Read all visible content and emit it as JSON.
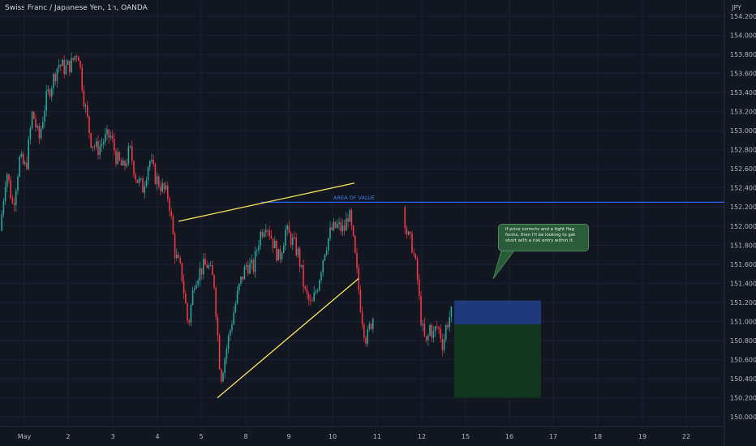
{
  "header": {
    "title": "Swiss Franc / Japanese Yen, 1h, OANDA",
    "currency": "JPY"
  },
  "annotations": {
    "area_of_value": "AREA OF VALUE",
    "callout": "If price corrects and a tight flag forms, then I'll be looking to get short with a risk entry within it."
  },
  "colors": {
    "background": "#131722",
    "up": "#26a69a",
    "down": "#f23645",
    "trendline": "#f7e35b",
    "level": "#2962ff",
    "risk_zone": "#1f3a78",
    "reward_zone": "#13351f",
    "callout_bg": "#2a5c3a"
  },
  "chart_data": {
    "type": "candlestick",
    "title": "Swiss Franc / Japanese Yen, 1h, OANDA",
    "y_unit": "JPY",
    "ylim": [
      149.9,
      154.3
    ],
    "x_ticks": [
      "May",
      "2",
      "3",
      "4",
      "5",
      "8",
      "9",
      "10",
      "11",
      "12",
      "15",
      "16",
      "17",
      "18",
      "19",
      "22"
    ],
    "y_ticks": [
      150.0,
      150.2,
      150.4,
      150.6,
      150.8,
      151.0,
      151.2,
      151.4,
      151.6,
      151.8,
      152.0,
      152.2,
      152.4,
      152.6,
      152.8,
      153.0,
      153.2,
      153.4,
      153.6,
      153.8,
      154.0,
      154.2
    ],
    "price_path": [
      [
        0,
        151.95
      ],
      [
        8,
        152.6
      ],
      [
        16,
        152.2
      ],
      [
        24,
        152.7
      ],
      [
        32,
        152.6
      ],
      [
        40,
        153.2
      ],
      [
        48,
        152.9
      ],
      [
        56,
        153.3
      ],
      [
        64,
        153.5
      ],
      [
        72,
        153.7
      ],
      [
        80,
        153.65
      ],
      [
        88,
        153.7
      ],
      [
        96,
        153.85
      ],
      [
        104,
        153.3
      ],
      [
        112,
        152.9
      ],
      [
        120,
        152.8
      ],
      [
        128,
        152.9
      ],
      [
        136,
        152.95
      ],
      [
        144,
        152.7
      ],
      [
        152,
        152.6
      ],
      [
        160,
        152.8
      ],
      [
        168,
        152.5
      ],
      [
        176,
        152.4
      ],
      [
        184,
        152.7
      ],
      [
        192,
        152.5
      ],
      [
        200,
        152.4
      ],
      [
        208,
        152.3
      ],
      [
        216,
        151.7
      ],
      [
        224,
        151.5
      ],
      [
        232,
        150.95
      ],
      [
        240,
        151.45
      ],
      [
        248,
        151.55
      ],
      [
        256,
        151.6
      ],
      [
        264,
        151.4
      ],
      [
        272,
        150.4
      ],
      [
        280,
        150.75
      ],
      [
        288,
        151.1
      ],
      [
        296,
        151.4
      ],
      [
        304,
        151.6
      ],
      [
        312,
        151.55
      ],
      [
        320,
        151.9
      ],
      [
        328,
        152.05
      ],
      [
        336,
        151.85
      ],
      [
        344,
        151.65
      ],
      [
        352,
        151.95
      ],
      [
        360,
        151.85
      ],
      [
        368,
        151.7
      ],
      [
        376,
        151.3
      ],
      [
        384,
        151.15
      ],
      [
        392,
        151.4
      ],
      [
        400,
        151.75
      ],
      [
        408,
        151.95
      ],
      [
        416,
        152.0
      ],
      [
        424,
        151.95
      ],
      [
        430,
        152.15
      ],
      [
        436,
        151.8
      ],
      [
        440,
        151.5
      ],
      [
        444,
        151.2
      ],
      [
        448,
        150.95
      ],
      [
        452,
        150.8
      ],
      [
        456,
        150.95
      ],
      [
        460,
        151.05
      ],
      [
        497,
        152.2
      ],
      [
        502,
        151.9
      ],
      [
        508,
        151.8
      ],
      [
        514,
        151.5
      ],
      [
        518,
        151.1
      ],
      [
        522,
        150.85
      ],
      [
        526,
        150.75
      ],
      [
        530,
        150.95
      ],
      [
        534,
        150.85
      ],
      [
        538,
        150.95
      ],
      [
        542,
        150.9
      ],
      [
        546,
        150.75
      ],
      [
        550,
        150.95
      ],
      [
        554,
        151.05
      ],
      [
        558,
        151.1
      ]
    ],
    "trendlines": [
      {
        "from": [
          "4",
          152.05
        ],
        "to": [
          "10",
          152.45
        ]
      },
      {
        "from": [
          "5",
          150.2
        ],
        "to": [
          "10",
          151.45
        ]
      }
    ],
    "horizontal_level": 152.25,
    "position": {
      "entry": 150.97,
      "stop": 151.22,
      "target": 150.2
    }
  }
}
